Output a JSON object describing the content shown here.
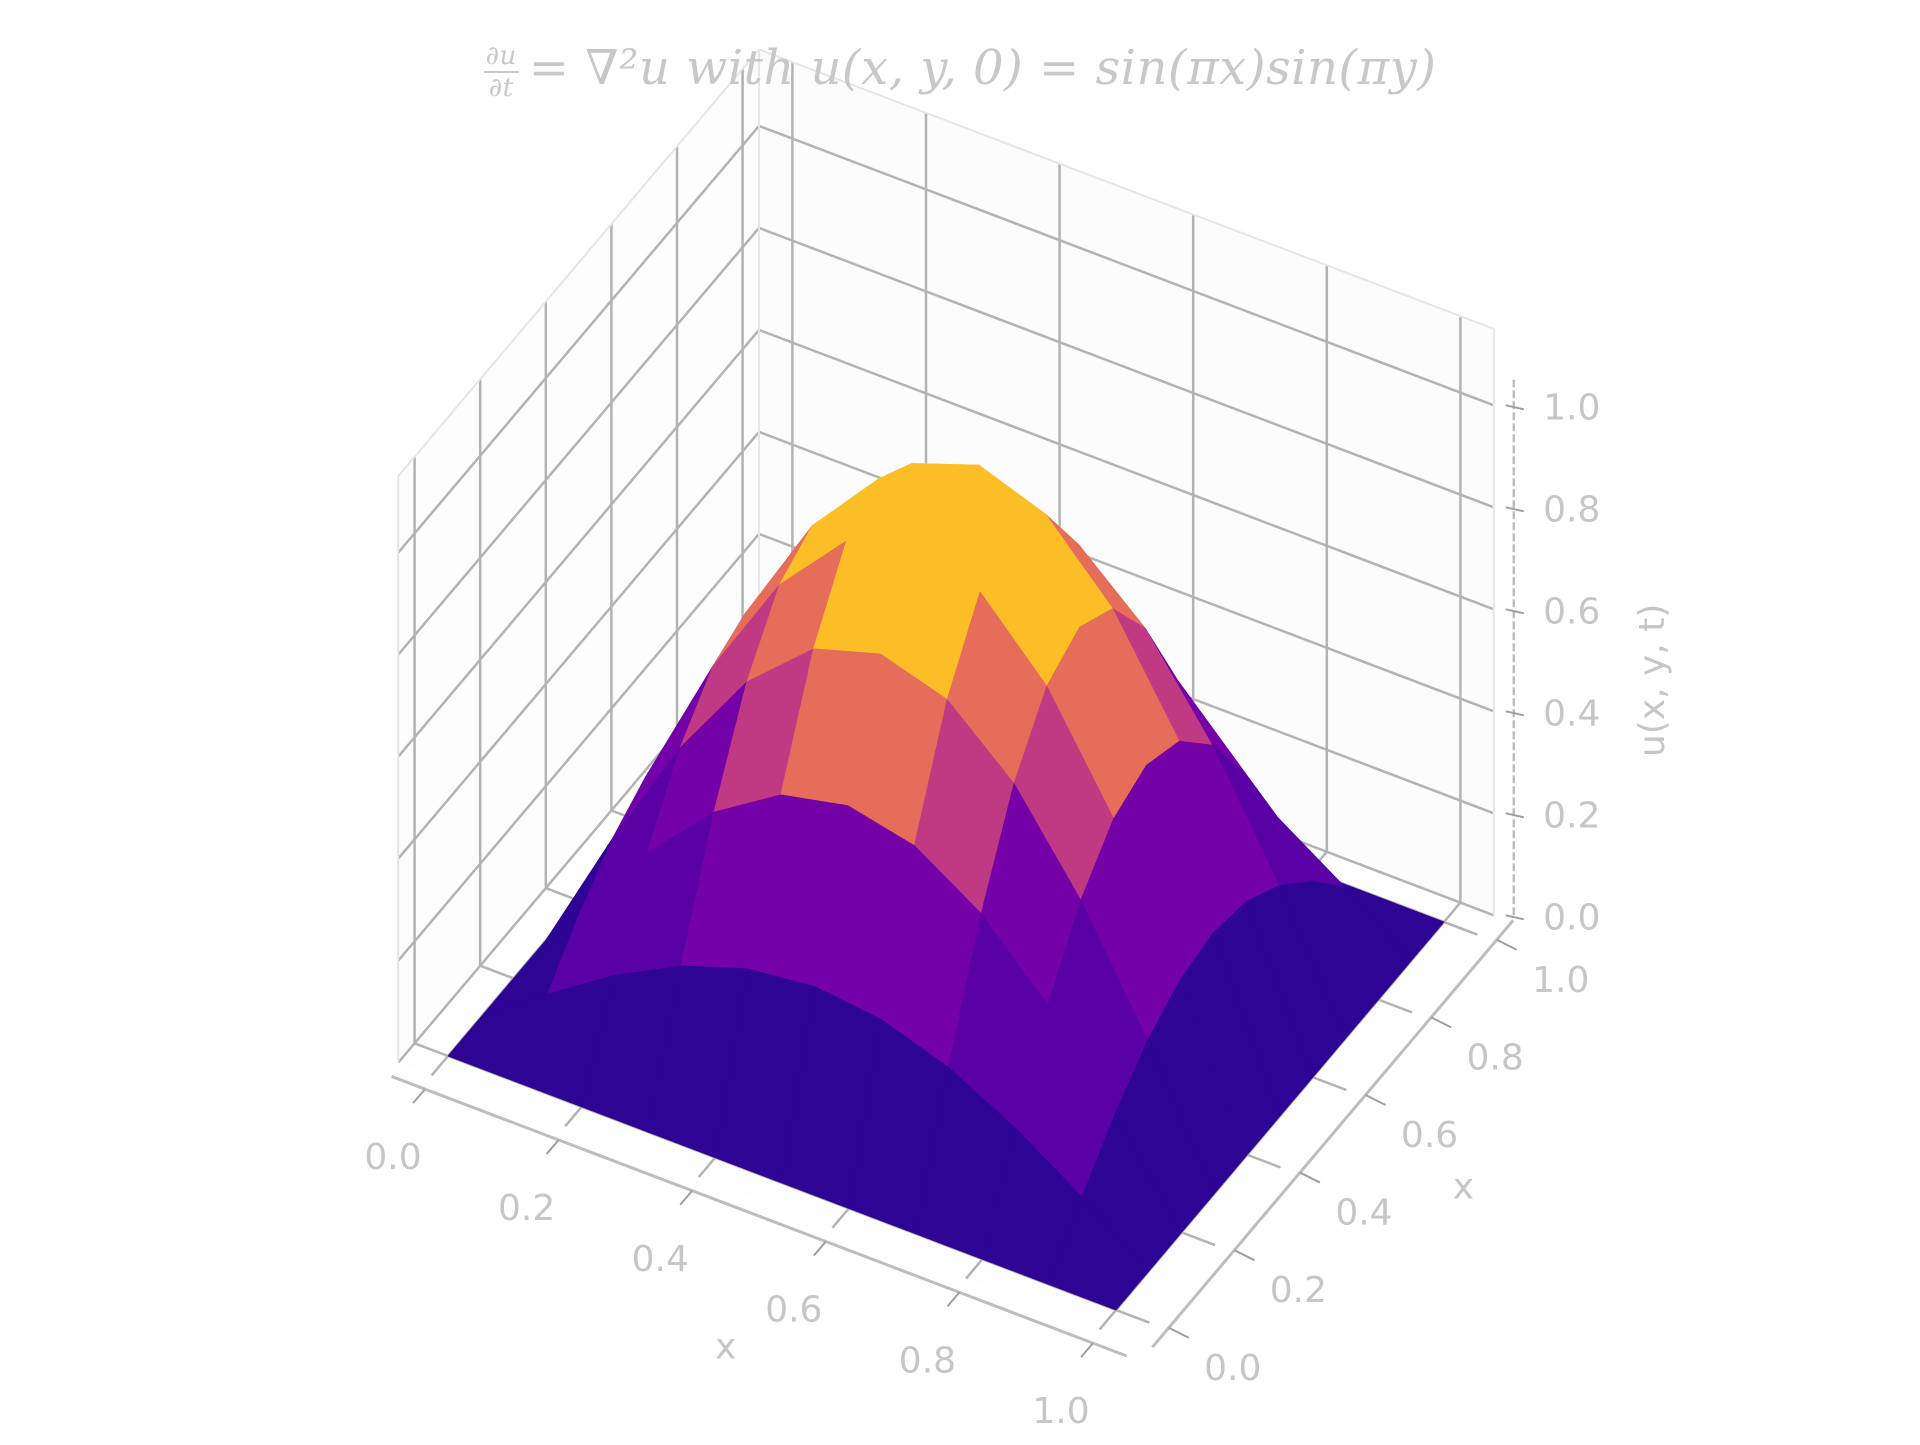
{
  "title": {
    "frac_num": "∂u",
    "frac_den": "∂t",
    "equation": "= ∇²u with u(x, y, 0) = sin(πx)sin(πy)"
  },
  "chart_data": {
    "type": "surface3d",
    "title": "∂u/∂t = ∇²u with u(x, y, 0) = sin(πx)sin(πy)",
    "xlabel": "x",
    "ylabel": "x",
    "zlabel": "u(x, y, t)",
    "x": [
      0.0,
      0.1,
      0.2,
      0.3,
      0.4,
      0.5,
      0.6,
      0.7,
      0.8,
      0.9,
      1.0
    ],
    "y": [
      0.0,
      0.1,
      0.2,
      0.3,
      0.4,
      0.5,
      0.6,
      0.7,
      0.8,
      0.9,
      1.0
    ],
    "z_function": "sin(pi*x)*sin(pi*y)",
    "xlim": [
      0,
      1
    ],
    "ylim": [
      0,
      1
    ],
    "zlim": [
      0,
      1
    ],
    "x_ticks": [
      "0.0",
      "0.2",
      "0.4",
      "0.6",
      "0.8",
      "1.0"
    ],
    "y_ticks": [
      "0.0",
      "0.2",
      "0.4",
      "0.6",
      "0.8",
      "1.0"
    ],
    "z_ticks": [
      "0.0",
      "0.2",
      "0.4",
      "0.6",
      "0.8",
      "1.0"
    ],
    "colormap": "plasma (quantized)",
    "colors": [
      "#2e0494",
      "#5a01a5",
      "#7400a8",
      "#c03a83",
      "#e66d5a",
      "#fbbe27"
    ],
    "grid": true
  }
}
